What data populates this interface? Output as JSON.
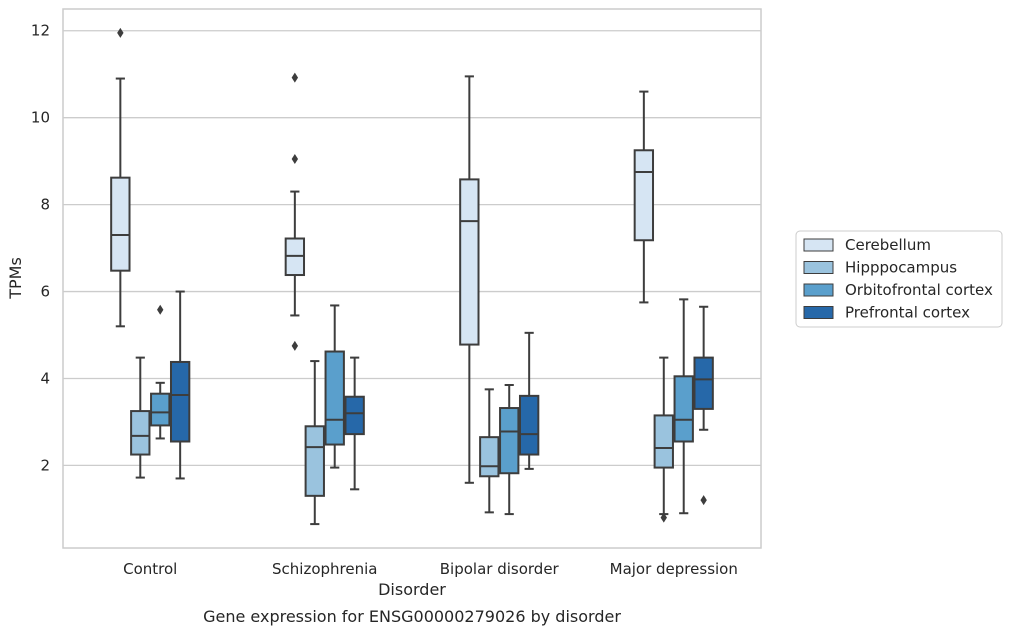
{
  "chart_data": {
    "type": "box",
    "title": "",
    "caption": "Gene expression for ENSG00000279026 by disorder",
    "xlabel": "Disorder",
    "ylabel": "TPMs",
    "categories": [
      "Control",
      "Schizophrenia",
      "Bipolar disorder",
      "Major depression"
    ],
    "ylim": [
      0.1,
      12.5
    ],
    "yticks": [
      2,
      4,
      6,
      8,
      10,
      12
    ],
    "grid": true,
    "legend_position": "right",
    "series": [
      {
        "name": "Cerebellum",
        "color": "#d6e5f3",
        "boxes": [
          {
            "whislo": 5.2,
            "q1": 6.48,
            "med": 7.3,
            "q3": 8.62,
            "whishi": 10.9,
            "fliers": [
              11.95
            ]
          },
          {
            "whislo": 5.45,
            "q1": 6.38,
            "med": 6.82,
            "q3": 7.22,
            "whishi": 8.3,
            "fliers": [
              10.92,
              9.05,
              4.75
            ]
          },
          {
            "whislo": 1.6,
            "q1": 4.78,
            "med": 7.62,
            "q3": 8.58,
            "whishi": 10.95,
            "fliers": []
          },
          {
            "whislo": 5.75,
            "q1": 7.18,
            "med": 8.75,
            "q3": 9.25,
            "whishi": 10.6,
            "fliers": []
          }
        ]
      },
      {
        "name": "Hipppocampus",
        "color": "#9ac3de",
        "boxes": [
          {
            "whislo": 1.72,
            "q1": 2.25,
            "med": 2.68,
            "q3": 3.25,
            "whishi": 4.48,
            "fliers": []
          },
          {
            "whislo": 0.65,
            "q1": 1.3,
            "med": 2.42,
            "q3": 2.9,
            "whishi": 4.4,
            "fliers": []
          },
          {
            "whislo": 0.92,
            "q1": 1.75,
            "med": 1.98,
            "q3": 2.65,
            "whishi": 3.75,
            "fliers": []
          },
          {
            "whislo": 0.88,
            "q1": 1.95,
            "med": 2.4,
            "q3": 3.15,
            "whishi": 4.48,
            "fliers": [
              0.8
            ]
          }
        ]
      },
      {
        "name": "Orbitofrontal cortex",
        "color": "#5a9fcc",
        "boxes": [
          {
            "whislo": 2.62,
            "q1": 2.92,
            "med": 3.22,
            "q3": 3.65,
            "whishi": 3.9,
            "fliers": [
              5.58
            ]
          },
          {
            "whislo": 1.95,
            "q1": 2.48,
            "med": 3.05,
            "q3": 4.62,
            "whishi": 5.68,
            "fliers": []
          },
          {
            "whislo": 0.88,
            "q1": 1.82,
            "med": 2.78,
            "q3": 3.32,
            "whishi": 3.85,
            "fliers": []
          },
          {
            "whislo": 0.9,
            "q1": 2.55,
            "med": 3.05,
            "q3": 4.05,
            "whishi": 5.82,
            "fliers": []
          }
        ]
      },
      {
        "name": "Prefrontal cortex",
        "color": "#2668a9",
        "boxes": [
          {
            "whislo": 1.7,
            "q1": 2.55,
            "med": 3.62,
            "q3": 4.38,
            "whishi": 6.0,
            "fliers": []
          },
          {
            "whislo": 1.45,
            "q1": 2.72,
            "med": 3.2,
            "q3": 3.58,
            "whishi": 4.48,
            "fliers": []
          },
          {
            "whislo": 1.92,
            "q1": 2.25,
            "med": 2.72,
            "q3": 3.6,
            "whishi": 5.05,
            "fliers": []
          },
          {
            "whislo": 2.82,
            "q1": 3.3,
            "med": 3.98,
            "q3": 4.48,
            "whishi": 5.65,
            "fliers": [
              1.2
            ]
          }
        ]
      }
    ]
  }
}
